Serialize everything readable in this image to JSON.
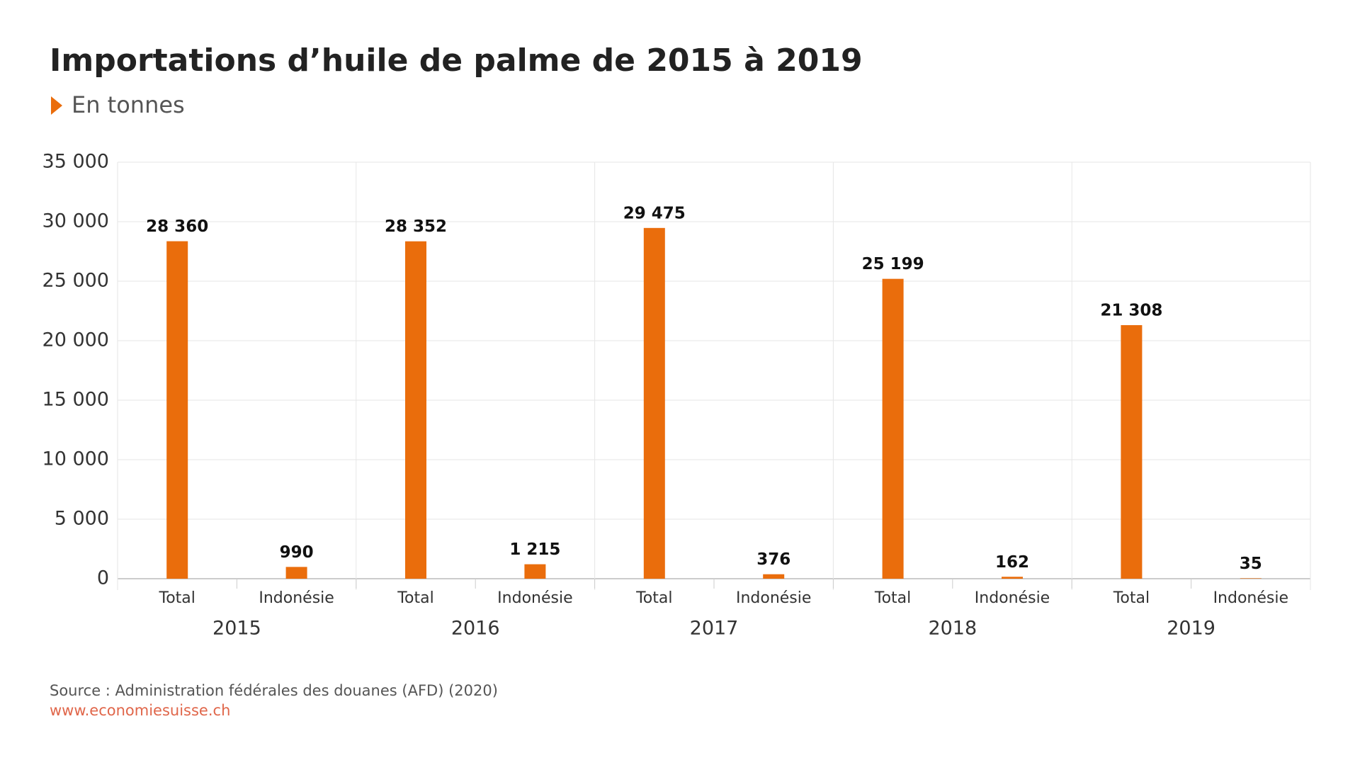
{
  "chart_data": {
    "type": "bar",
    "title": "Importations d’huile de palme de 2015 à 2019",
    "subtitle": "En tonnes",
    "categories": [
      "Total",
      "Indonésie",
      "Total",
      "Indonésie",
      "Total",
      "Indonésie",
      "Total",
      "Indonésie",
      "Total",
      "Indonésie"
    ],
    "groups": [
      "2015",
      "2016",
      "2017",
      "2018",
      "2019"
    ],
    "values": [
      28360,
      990,
      28352,
      1215,
      29475,
      376,
      25199,
      162,
      21308,
      35
    ],
    "value_labels": [
      "28 360",
      "990",
      "28 352",
      "1 215",
      "29 475",
      "376",
      "25 199",
      "162",
      "21 308",
      "35"
    ],
    "color": "#ea6d0c",
    "ylim": [
      0,
      35000
    ],
    "yticks": [
      0,
      {
        "value": 5000,
        "label": "5 000"
      },
      {
        "value": 10000,
        "label": "10 000"
      },
      {
        "value": 15000,
        "label": "15 000"
      },
      {
        "value": 20000,
        "label": "20 000"
      },
      {
        "value": 25000,
        "label": "25 000"
      },
      {
        "value": 30000,
        "label": "30 000"
      },
      {
        "value": 35000,
        "label": "35 000"
      }
    ],
    "grid": true,
    "source": "Source : Administration fédérales des douanes (AFD) (2020)",
    "url": "www.economiesuisse.ch"
  }
}
